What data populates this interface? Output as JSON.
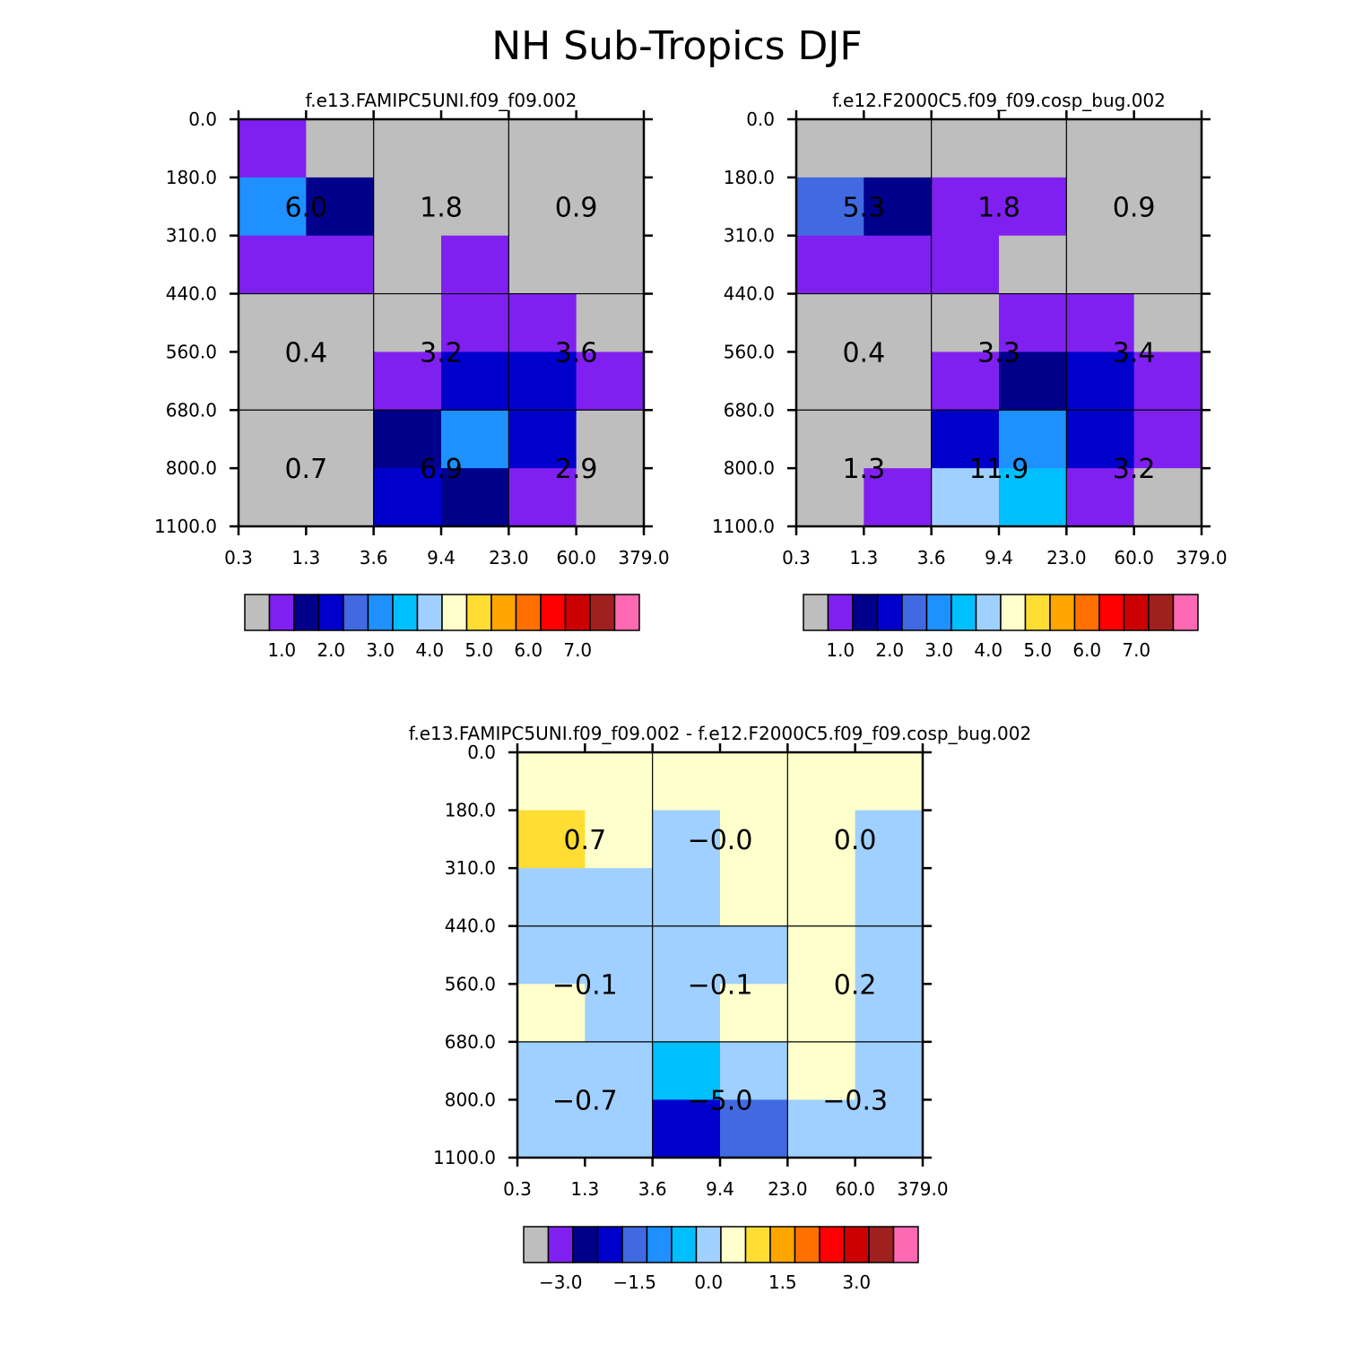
{
  "title": "NH Sub-Tropics DJF",
  "palette": [
    "#bebebe",
    "#8020f0",
    "#00008b",
    "#0000cd",
    "#4169e1",
    "#1e90ff",
    "#00bfff",
    "#a0d0ff",
    "#ffffcc",
    "#ffdd33",
    "#ffa500",
    "#ff7000",
    "#ff0000",
    "#cc0000",
    "#a02020",
    "#ff69b4"
  ],
  "chart_data": [
    {
      "type": "heatmap",
      "title": "f.e13.FAMIPC5UNI.f09_f09.002",
      "x_ticks": [
        "0.3",
        "1.3",
        "3.6",
        "9.4",
        "23.0",
        "60.0",
        "379.0"
      ],
      "y_ticks": [
        "0.0",
        "180.0",
        "310.0",
        "440.0",
        "560.0",
        "680.0",
        "800.0",
        "1100.0"
      ],
      "cells": [
        [
          1,
          0,
          0,
          0,
          0,
          0
        ],
        [
          5,
          2,
          0,
          0,
          0,
          0
        ],
        [
          1,
          1,
          0,
          1,
          0,
          0
        ],
        [
          0,
          0,
          0,
          1,
          1,
          0
        ],
        [
          0,
          0,
          1,
          3,
          3,
          1
        ],
        [
          0,
          0,
          2,
          5,
          3,
          0
        ],
        [
          0,
          0,
          3,
          2,
          1,
          0
        ]
      ],
      "block_values": [
        [
          "6.0",
          "1.8",
          "0.9"
        ],
        [
          "0.4",
          "3.2",
          "3.6"
        ],
        [
          "0.7",
          "6.9",
          "2.9"
        ]
      ],
      "colorbar_labels": [
        "1.0",
        "2.0",
        "3.0",
        "4.0",
        "5.0",
        "6.0",
        "7.0"
      ]
    },
    {
      "type": "heatmap",
      "title": "f.e12.F2000C5.f09_f09.cosp_bug.002",
      "x_ticks": [
        "0.3",
        "1.3",
        "3.6",
        "9.4",
        "23.0",
        "60.0",
        "379.0"
      ],
      "y_ticks": [
        "0.0",
        "180.0",
        "310.0",
        "440.0",
        "560.0",
        "680.0",
        "800.0",
        "1100.0"
      ],
      "cells": [
        [
          0,
          0,
          0,
          0,
          0,
          0
        ],
        [
          4,
          2,
          1,
          1,
          0,
          0
        ],
        [
          1,
          1,
          1,
          0,
          0,
          0
        ],
        [
          0,
          0,
          0,
          1,
          1,
          0
        ],
        [
          0,
          0,
          1,
          2,
          3,
          1
        ],
        [
          0,
          0,
          3,
          5,
          3,
          1
        ],
        [
          0,
          1,
          7,
          6,
          1,
          0
        ]
      ],
      "block_values": [
        [
          "5.3",
          "1.8",
          "0.9"
        ],
        [
          "0.4",
          "3.3",
          "3.4"
        ],
        [
          "1.3",
          "11.9",
          "3.2"
        ]
      ],
      "colorbar_labels": [
        "1.0",
        "2.0",
        "3.0",
        "4.0",
        "5.0",
        "6.0",
        "7.0"
      ]
    },
    {
      "type": "heatmap",
      "title": "f.e13.FAMIPC5UNI.f09_f09.002 - f.e12.F2000C5.f09_f09.cosp_bug.002",
      "x_ticks": [
        "0.3",
        "1.3",
        "3.6",
        "9.4",
        "23.0",
        "60.0",
        "379.0"
      ],
      "y_ticks": [
        "0.0",
        "180.0",
        "310.0",
        "440.0",
        "560.0",
        "680.0",
        "800.0",
        "1100.0"
      ],
      "cells": [
        [
          8,
          8,
          8,
          8,
          8,
          8
        ],
        [
          9,
          8,
          7,
          8,
          8,
          7
        ],
        [
          7,
          7,
          7,
          8,
          8,
          7
        ],
        [
          7,
          7,
          7,
          7,
          8,
          7
        ],
        [
          8,
          7,
          7,
          8,
          8,
          7
        ],
        [
          7,
          7,
          6,
          7,
          8,
          7
        ],
        [
          7,
          7,
          3,
          4,
          7,
          7
        ]
      ],
      "block_values": [
        [
          "0.7",
          "-0.0",
          "0.0"
        ],
        [
          "-0.1",
          "-0.1",
          "0.2"
        ],
        [
          "-0.7",
          "-5.0",
          "-0.3"
        ]
      ],
      "colorbar_labels": [
        "-3.0",
        "-1.5",
        "0.0",
        "1.5",
        "3.0"
      ]
    }
  ]
}
